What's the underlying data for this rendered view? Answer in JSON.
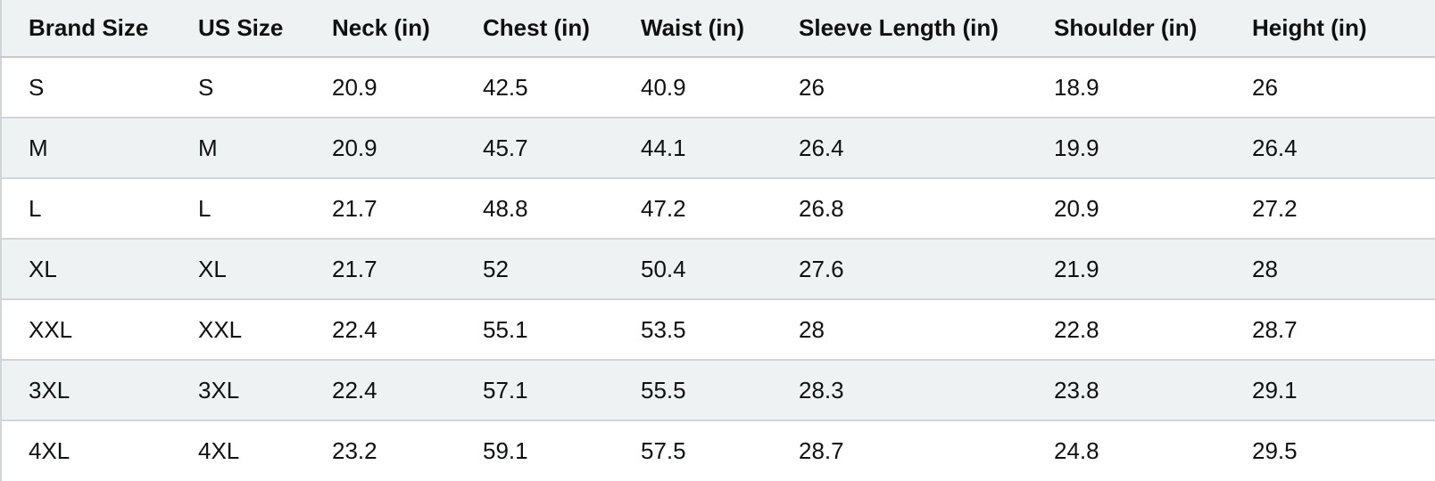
{
  "table": {
    "headers": [
      "Brand Size",
      "US Size",
      "Neck (in)",
      "Chest (in)",
      "Waist (in)",
      "Sleeve Length (in)",
      "Shoulder (in)",
      "Height (in)"
    ],
    "rows": [
      [
        "S",
        "S",
        "20.9",
        "42.5",
        "40.9",
        "26",
        "18.9",
        "26"
      ],
      [
        "M",
        "M",
        "20.9",
        "45.7",
        "44.1",
        "26.4",
        "19.9",
        "26.4"
      ],
      [
        "L",
        "L",
        "21.7",
        "48.8",
        "47.2",
        "26.8",
        "20.9",
        "27.2"
      ],
      [
        "XL",
        "XL",
        "21.7",
        "52",
        "50.4",
        "27.6",
        "21.9",
        "28"
      ],
      [
        "XXL",
        "XXL",
        "22.4",
        "55.1",
        "53.5",
        "28",
        "22.8",
        "28.7"
      ],
      [
        "3XL",
        "3XL",
        "22.4",
        "57.1",
        "55.5",
        "28.3",
        "23.8",
        "29.1"
      ],
      [
        "4XL",
        "4XL",
        "23.2",
        "59.1",
        "57.5",
        "28.7",
        "24.8",
        "29.5"
      ]
    ]
  },
  "colors": {
    "header_background": "#eff2f3",
    "stripe_background": "#eff2f3",
    "row_background": "#ffffff",
    "border": "#cfd5d8",
    "text": "#0f1111"
  }
}
